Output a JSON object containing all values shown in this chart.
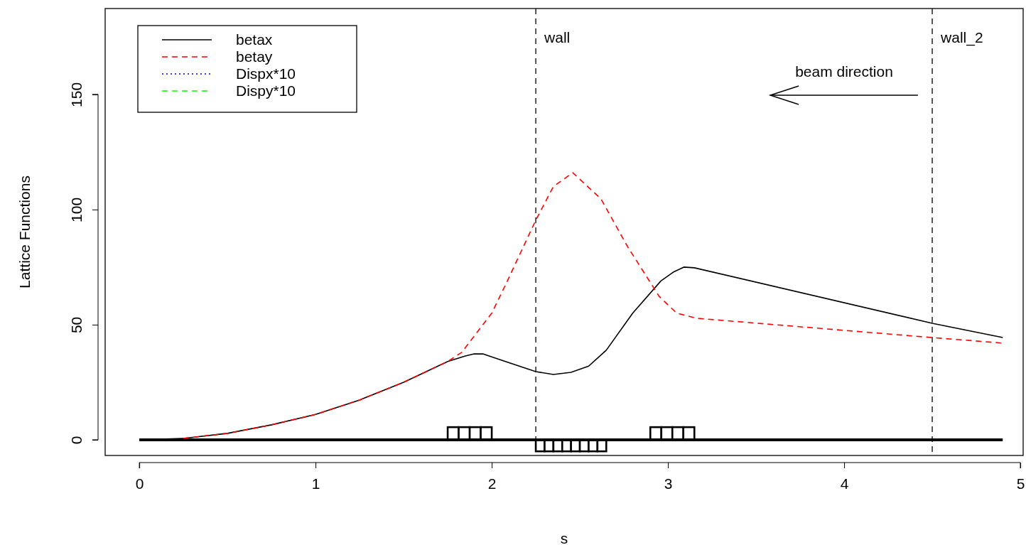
{
  "chart_data": {
    "type": "line",
    "xlabel": "s",
    "ylabel": "Lattice Functions",
    "xlim": [
      -0.194,
      5.016
    ],
    "ylim": [
      -6.8,
      187.3
    ],
    "xticks": [
      0,
      1,
      2,
      3,
      4,
      5
    ],
    "yticks": [
      0,
      50,
      100,
      150
    ],
    "grid": false,
    "legend": "top left",
    "marker": "none",
    "series": [
      {
        "type": "bar",
        "color": "#000000",
        "x": [
          1.78125,
          1.84375,
          1.90625,
          1.96875,
          2.275,
          2.325,
          2.375,
          2.425,
          2.475,
          2.525,
          2.575,
          2.625,
          2.93125,
          2.99375,
          3.05625,
          3.11875
        ],
        "values": [
          5.5,
          5.5,
          5.5,
          5.5,
          -5,
          -5,
          -5,
          -5,
          -5,
          -5,
          -5,
          -5,
          5.5,
          5.5,
          5.5,
          5.5
        ]
      },
      {
        "color": "#000000",
        "line_style": "solid",
        "x": [
          0,
          4.9
        ],
        "values": [
          0,
          0
        ]
      },
      {
        "name": "betax",
        "color": "#000000",
        "line_style": "solid",
        "x": [
          0,
          0.25,
          0.5,
          0.75,
          1,
          1.25,
          1.5,
          1.75,
          1.85,
          1.9,
          1.95,
          2,
          2.25,
          2.35,
          2.45,
          2.55,
          2.65,
          2.8,
          2.96,
          3.03,
          3.09,
          3.15,
          4.5,
          4.9
        ],
        "values": [
          0,
          0.6,
          2.8,
          6.5,
          11,
          17.3,
          25,
          34,
          36.4,
          37.3,
          37.3,
          36,
          29.6,
          28.4,
          29.3,
          32,
          38.9,
          55,
          69,
          72.8,
          75,
          74.7,
          50.6,
          44.4
        ]
      },
      {
        "name": "betay",
        "color": "#ff0000",
        "line_style": "dashed",
        "x": [
          0.25,
          0.5,
          0.75,
          1,
          1.25,
          1.5,
          1.75,
          1.83,
          2,
          2.08,
          2.25,
          2.35,
          2.46,
          2.62,
          2.77,
          2.95,
          3.05,
          3.16,
          4.5,
          4.9
        ],
        "values": [
          0.6,
          2.8,
          6.5,
          11,
          17.3,
          25,
          34,
          38,
          55,
          67.6,
          95.4,
          110,
          116,
          104.6,
          84,
          62.3,
          55,
          52.8,
          44.4,
          42
        ]
      },
      {
        "name": "Dispx*10",
        "color": "#0000ff",
        "line_style": "dotted",
        "values": [
          null
        ]
      },
      {
        "name": "Dispy*10",
        "color": "#00ff00",
        "line_style": "dashed",
        "values": [
          null
        ]
      }
    ],
    "ref_lines": [
      {
        "axis": "x",
        "value": 2.25,
        "label": "wall",
        "color": "#000000",
        "line_style": "dashed"
      },
      {
        "axis": "x",
        "value": 4.5,
        "label": "wall_2",
        "color": "#000000",
        "line_style": "dashed"
      }
    ],
    "annotations": [
      "beam direction"
    ]
  }
}
